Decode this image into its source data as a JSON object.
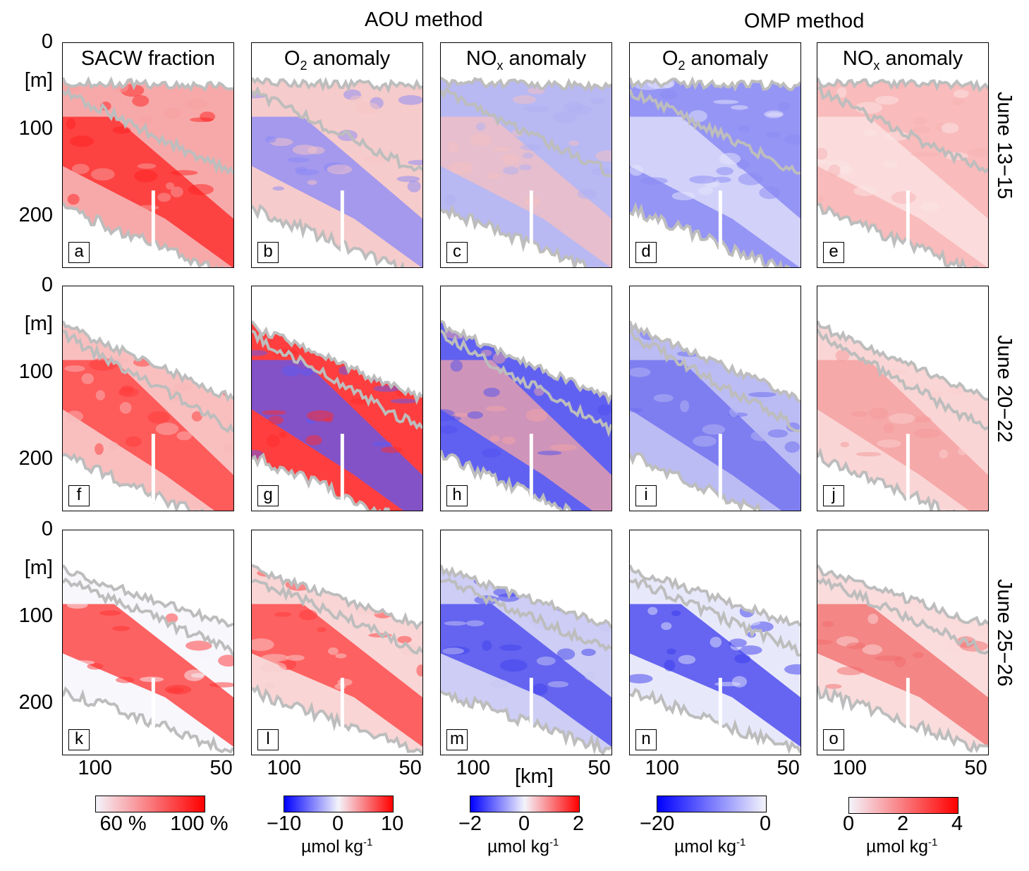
{
  "headers": {
    "aou": "AOU method",
    "omp": "OMP method"
  },
  "chart_data": {
    "type": "heatmap",
    "xlabel": "[km]",
    "ylabel": "[m]",
    "xlim": [
      113,
      46
    ],
    "ylim": [
      0,
      260
    ],
    "xticks": [
      "100",
      "50"
    ],
    "yticks": [
      "0",
      "[m]",
      "100",
      "200"
    ],
    "columns": [
      {
        "title": "SACW fraction",
        "sub": ""
      },
      {
        "title": "O",
        "sub": "2",
        "title2": " anomaly"
      },
      {
        "title": "NO",
        "sub": "x",
        "title2": " anomaly"
      },
      {
        "title": "O",
        "sub": "2",
        "title2": " anomaly"
      },
      {
        "title": "NO",
        "sub": "x",
        "title2": " anomaly"
      }
    ],
    "rows": [
      "June 13−15",
      "June 20−22",
      "June 25−26"
    ],
    "panel_letters": [
      "a",
      "b",
      "c",
      "d",
      "e",
      "f",
      "g",
      "h",
      "i",
      "j",
      "k",
      "l",
      "m",
      "n",
      "o"
    ],
    "colorbars": [
      {
        "ticks": [
          "60 %",
          "100 %"
        ],
        "unit": "",
        "colors": [
          "#f4f4fb",
          "#ff0000"
        ],
        "range": [
          50,
          100
        ]
      },
      {
        "ticks": [
          "−10",
          "0",
          "10"
        ],
        "unit": "µmol kg",
        "exp": "-1",
        "colors": [
          "#0000ff",
          "#f4f4fb",
          "#ff0000"
        ],
        "range": [
          -15,
          15
        ]
      },
      {
        "ticks": [
          "−2",
          "0",
          "2"
        ],
        "unit": "µmol kg",
        "exp": "-1",
        "colors": [
          "#0000ff",
          "#f4f4fb",
          "#ff0000"
        ],
        "range": [
          -2,
          2
        ]
      },
      {
        "ticks": [
          "−20",
          "0"
        ],
        "unit": "µmol kg",
        "exp": "-1",
        "colors": [
          "#0000ff",
          "#f4f4fb"
        ],
        "range": [
          -30,
          0
        ]
      },
      {
        "ticks": [
          "0",
          "2",
          "4"
        ],
        "unit": "µmol kg",
        "exp": "-1",
        "colors": [
          "#f4f4fb",
          "#ff0000"
        ],
        "range": [
          0,
          4
        ]
      }
    ]
  }
}
